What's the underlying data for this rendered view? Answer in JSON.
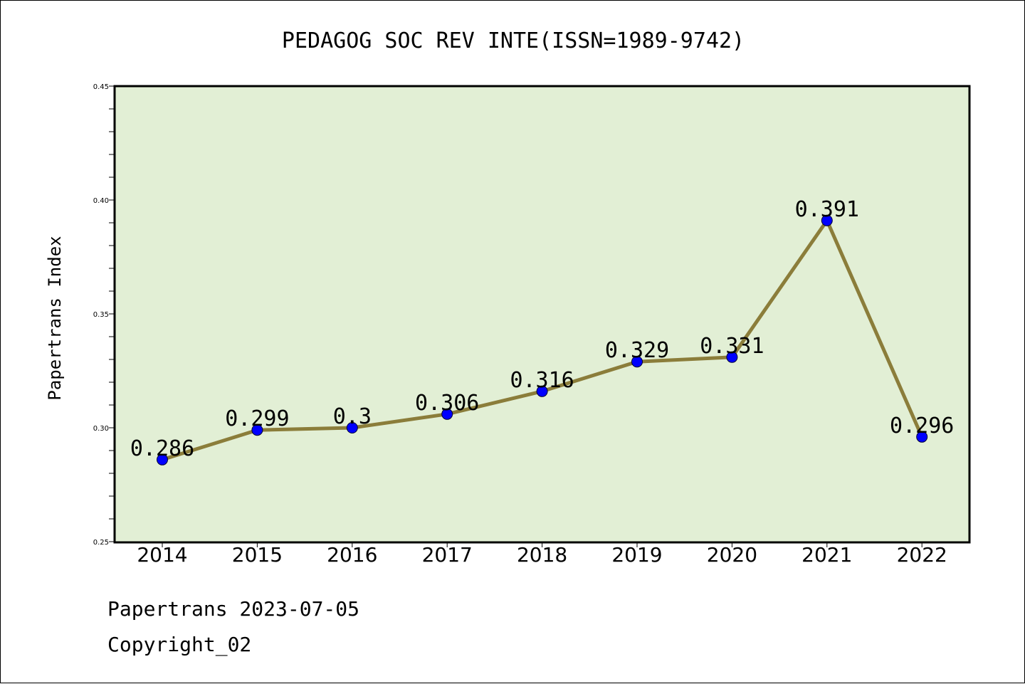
{
  "chart_data": {
    "type": "line",
    "title": "PEDAGOG SOC REV INTE(ISSN=1989-9742)",
    "xlabel": "",
    "ylabel": "Papertrans Index",
    "categories": [
      "2014",
      "2015",
      "2016",
      "2017",
      "2018",
      "2019",
      "2020",
      "2021",
      "2022"
    ],
    "series": [
      {
        "values": [
          0.286,
          0.299,
          0.3,
          0.306,
          0.316,
          0.329,
          0.331,
          0.391,
          0.296
        ],
        "labels": [
          "0.286",
          "0.299",
          "0.3",
          "0.306",
          "0.316",
          "0.329",
          "0.331",
          "0.391",
          "0.296"
        ]
      }
    ],
    "ylim": [
      0.25,
      0.45
    ],
    "yticks": [
      "0.25",
      "0.30",
      "0.35",
      "0.40",
      "0.45"
    ],
    "grid": false,
    "colors": {
      "plot_background": "#e2efd5",
      "line": "#8b7d3a",
      "marker": "#0000ff"
    }
  },
  "footer": {
    "source": "Papertrans 2023-07-05",
    "copyright": "Copyright_02"
  }
}
